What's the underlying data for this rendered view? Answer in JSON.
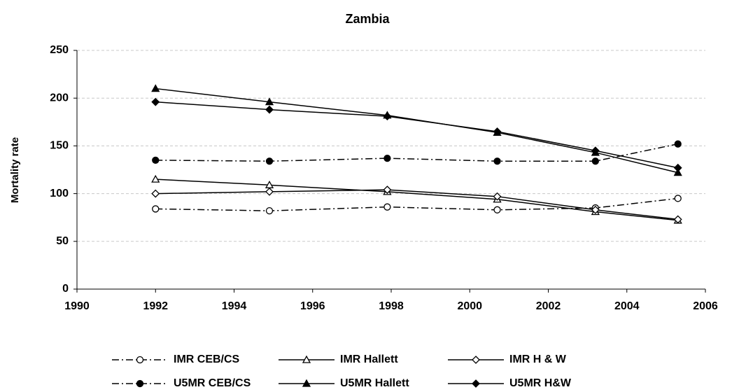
{
  "chart_data": {
    "type": "line",
    "title": "Zambia",
    "y_label": "Mortality rate",
    "xlim": [
      1990,
      2006
    ],
    "xticks": [
      1990,
      1992,
      1994,
      1996,
      1998,
      2000,
      2002,
      2004,
      2006
    ],
    "ylim": [
      0,
      250
    ],
    "yticks": [
      0,
      50,
      100,
      150,
      200,
      250
    ],
    "grid": true,
    "legend": "bottom",
    "series": [
      {
        "name": "IMR CEB/CS",
        "color": "#000000",
        "marker": "circle",
        "filled": false,
        "dash": "dashdot",
        "x": [
          1992.0,
          1994.9,
          1997.9,
          2000.7,
          2003.2,
          2005.3
        ],
        "values": [
          84,
          82,
          86,
          83,
          85,
          95
        ]
      },
      {
        "name": "IMR Hallett",
        "color": "#000000",
        "marker": "triangle",
        "filled": false,
        "dash": "solid",
        "x": [
          1992.0,
          1994.9,
          1997.9,
          2000.7,
          2003.2,
          2005.3
        ],
        "values": [
          115,
          109,
          102,
          94,
          81,
          72
        ]
      },
      {
        "name": "IMR H & W",
        "color": "#000000",
        "marker": "diamond",
        "filled": false,
        "dash": "solid",
        "x": [
          1992.0,
          1994.9,
          1997.9,
          2000.7,
          2003.2,
          2005.3
        ],
        "values": [
          100,
          102,
          104,
          97,
          83,
          73
        ]
      },
      {
        "name": "U5MR CEB/CS",
        "color": "#000000",
        "marker": "circle",
        "filled": true,
        "dash": "dashdot",
        "x": [
          1992.0,
          1994.9,
          1997.9,
          2000.7,
          2003.2,
          2005.3
        ],
        "values": [
          135,
          134,
          137,
          134,
          134,
          152
        ]
      },
      {
        "name": "U5MR Hallett",
        "color": "#000000",
        "marker": "triangle",
        "filled": true,
        "dash": "solid",
        "x": [
          1992.0,
          1994.9,
          1997.9,
          2000.7,
          2003.2,
          2005.3
        ],
        "values": [
          210,
          196,
          182,
          164,
          143,
          122
        ]
      },
      {
        "name": "U5MR H&W",
        "color": "#000000",
        "marker": "diamond",
        "filled": true,
        "dash": "solid",
        "x": [
          1992.0,
          1994.9,
          1997.9,
          2000.7,
          2003.2,
          2005.3
        ],
        "values": [
          196,
          188,
          181,
          165,
          145,
          127
        ]
      }
    ]
  }
}
